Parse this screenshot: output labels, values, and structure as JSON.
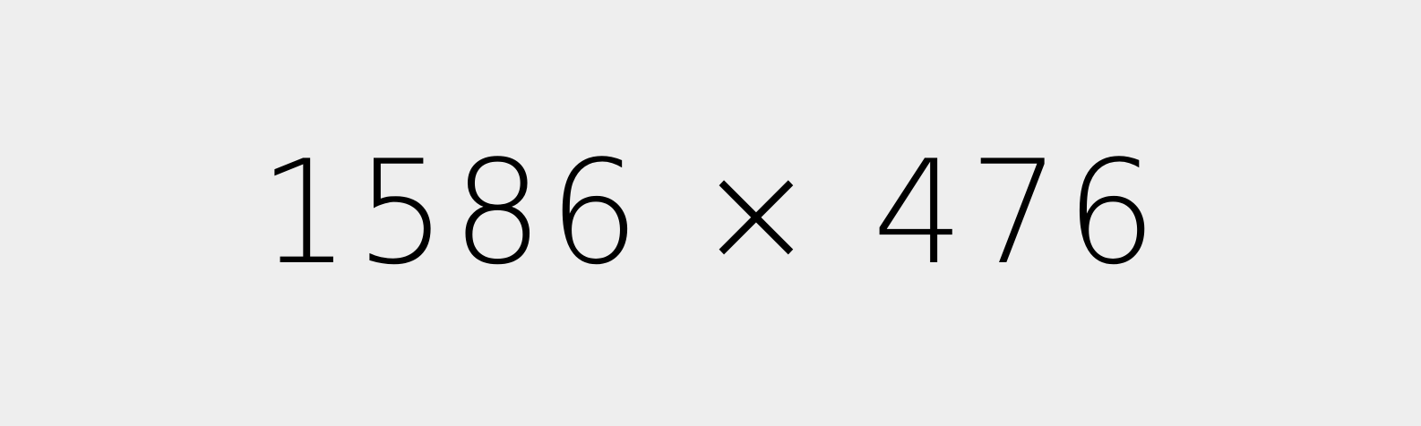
{
  "placeholder": {
    "text": "1586 × 476",
    "background_color": "#eeeeee",
    "text_color": "#000000"
  }
}
